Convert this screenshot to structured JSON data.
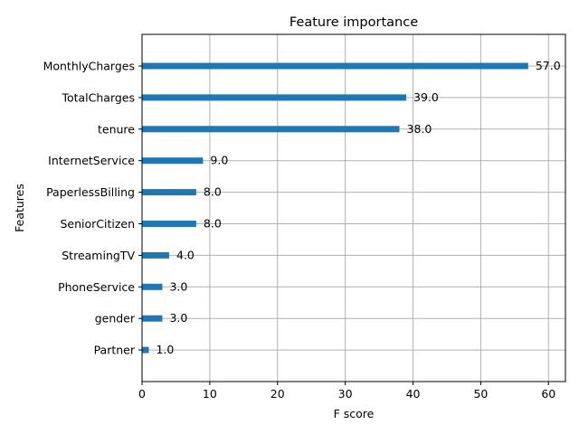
{
  "chart_data": {
    "type": "bar",
    "orientation": "horizontal",
    "title": "Feature importance",
    "xlabel": "F score",
    "ylabel": "Features",
    "categories": [
      "MonthlyCharges",
      "TotalCharges",
      "tenure",
      "InternetService",
      "PaperlessBilling",
      "SeniorCitizen",
      "StreamingTV",
      "PhoneService",
      "gender",
      "Partner"
    ],
    "values": [
      57.0,
      39.0,
      38.0,
      9.0,
      8.0,
      8.0,
      4.0,
      3.0,
      3.0,
      1.0
    ],
    "value_labels": [
      "57.0",
      "39.0",
      "38.0",
      "9.0",
      "8.0",
      "8.0",
      "4.0",
      "3.0",
      "3.0",
      "1.0"
    ],
    "xlim": [
      0,
      62.5
    ],
    "xticks": [
      0,
      10,
      20,
      30,
      40,
      50,
      60
    ],
    "xtick_labels": [
      "0",
      "10",
      "20",
      "30",
      "40",
      "50",
      "60"
    ],
    "grid": true,
    "bar_color": "#1f77b4",
    "grid_color": "#b0b0b0"
  }
}
